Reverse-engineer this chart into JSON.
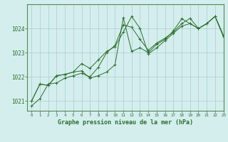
{
  "title": "Graphe pression niveau de la mer (hPa)",
  "background_color": "#d4eeee",
  "grid_color": "#aacccc",
  "line_color": "#2d6e2d",
  "spine_color": "#558855",
  "xlim": [
    -0.5,
    23
  ],
  "ylim": [
    1020.6,
    1025.0
  ],
  "yticks": [
    1021,
    1022,
    1023,
    1024
  ],
  "xticks": [
    0,
    1,
    2,
    3,
    4,
    5,
    6,
    7,
    8,
    9,
    10,
    11,
    12,
    13,
    14,
    15,
    16,
    17,
    18,
    19,
    20,
    21,
    22,
    23
  ],
  "series": [
    [
      1020.8,
      1021.1,
      1021.7,
      1021.75,
      1021.95,
      1022.05,
      1022.15,
      1022.0,
      1022.4,
      1023.0,
      1023.3,
      1024.15,
      1024.05,
      1023.55,
      1023.1,
      1023.4,
      1023.6,
      1023.85,
      1024.2,
      1024.42,
      1024.0,
      1024.2,
      1024.5,
      1023.65
    ],
    [
      1021.0,
      1021.7,
      1021.65,
      1022.05,
      1022.1,
      1022.2,
      1022.25,
      1021.95,
      1022.05,
      1022.2,
      1022.5,
      1024.45,
      1023.05,
      1023.2,
      1023.0,
      1023.35,
      1023.55,
      1023.9,
      1024.4,
      1024.2,
      1024.0,
      1024.2,
      1024.5,
      1023.7
    ],
    [
      1021.0,
      1021.7,
      1021.65,
      1022.05,
      1022.1,
      1022.2,
      1022.55,
      1022.35,
      1022.7,
      1023.05,
      1023.25,
      1023.85,
      1024.5,
      1024.0,
      1022.95,
      1023.2,
      1023.5,
      1023.8,
      1024.1,
      1024.2,
      1024.0,
      1024.2,
      1024.5,
      1023.7
    ]
  ]
}
